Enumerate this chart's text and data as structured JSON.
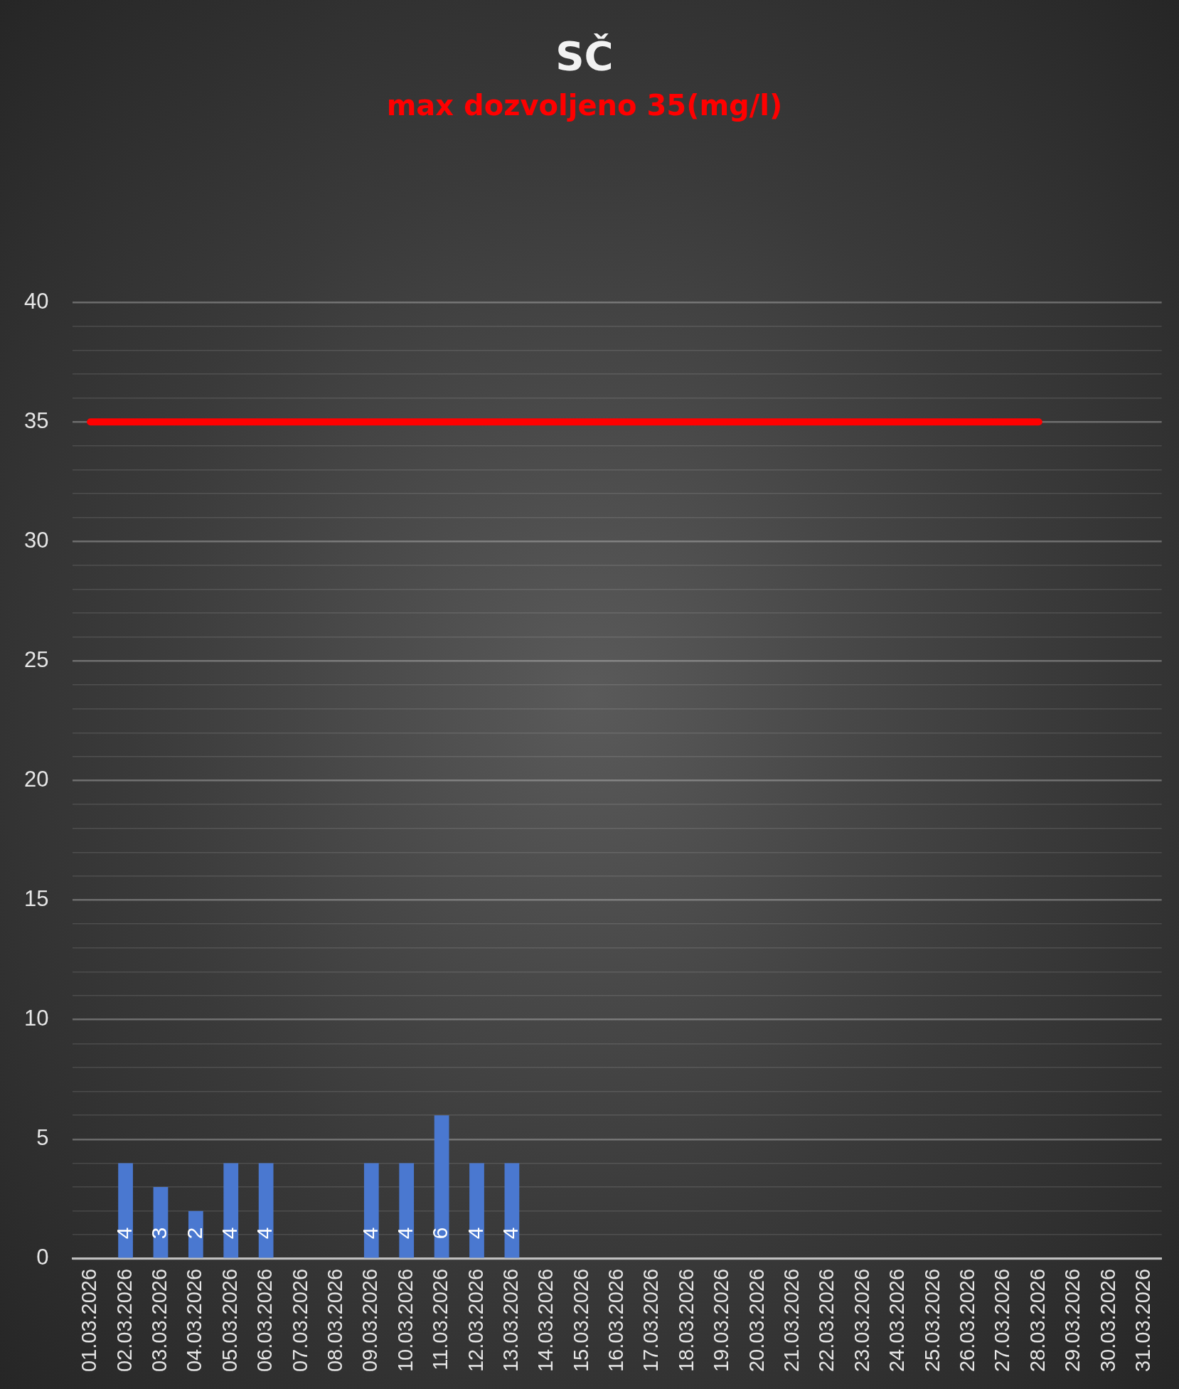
{
  "chart_data": {
    "type": "bar",
    "title": "SČ",
    "subtitle": "max dozvoljeno 35(mg/l)",
    "categories": [
      "01.03.2026",
      "02.03.2026",
      "03.03.2026",
      "04.03.2026",
      "05.03.2026",
      "06.03.2026",
      "07.03.2026",
      "08.03.2026",
      "09.03.2026",
      "10.03.2026",
      "11.03.2026",
      "12.03.2026",
      "13.03.2026",
      "14.03.2026",
      "15.03.2026",
      "16.03.2026",
      "17.03.2026",
      "18.03.2026",
      "19.03.2026",
      "20.03.2026",
      "21.03.2026",
      "22.03.2026",
      "23.03.2026",
      "24.03.2026",
      "25.03.2026",
      "26.03.2026",
      "27.03.2026",
      "28.03.2026",
      "29.03.2026",
      "30.03.2026",
      "31.03.2026"
    ],
    "series": [
      {
        "color": "#4a78d0",
        "values": [
          null,
          4,
          3,
          2,
          4,
          4,
          null,
          null,
          4,
          4,
          6,
          4,
          4,
          null,
          null,
          null,
          null,
          null,
          null,
          null,
          null,
          null,
          null,
          null,
          null,
          null,
          null,
          null,
          null,
          null,
          null
        ],
        "value_labels": [
          null,
          "4",
          "3",
          "2",
          "4",
          "4",
          null,
          null,
          "4",
          "4",
          "6",
          "4",
          "4",
          null,
          null,
          null,
          null,
          null,
          null,
          null,
          null,
          null,
          null,
          null,
          null,
          null,
          null,
          null,
          null,
          null,
          null
        ]
      },
      {
        "type": "line",
        "color": "#ff0000",
        "values": [
          35,
          35,
          35,
          35,
          35,
          35,
          35,
          35,
          35,
          35,
          35,
          35,
          35,
          35,
          35,
          35,
          35,
          35,
          35,
          35,
          35,
          35,
          35,
          35,
          35,
          35,
          35,
          35,
          null,
          null,
          null
        ]
      }
    ],
    "ylim": [
      0,
      40
    ],
    "yticks": [
      0,
      {
        "value": 1,
        "label": null
      },
      {
        "value": 2,
        "label": null
      },
      {
        "value": 3,
        "label": null
      },
      {
        "value": 4,
        "label": null
      },
      5,
      {
        "value": 6,
        "label": null
      },
      {
        "value": 7,
        "label": null
      },
      {
        "value": 8,
        "label": null
      },
      {
        "value": 9,
        "label": null
      },
      10,
      {
        "value": 11,
        "label": null
      },
      {
        "value": 12,
        "label": null
      },
      {
        "value": 13,
        "label": null
      },
      {
        "value": 14,
        "label": null
      },
      15,
      {
        "value": 16,
        "label": null
      },
      {
        "value": 17,
        "label": null
      },
      {
        "value": 18,
        "label": null
      },
      {
        "value": 19,
        "label": null
      },
      20,
      {
        "value": 21,
        "label": null
      },
      {
        "value": 22,
        "label": null
      },
      {
        "value": 23,
        "label": null
      },
      {
        "value": 24,
        "label": null
      },
      25,
      {
        "value": 26,
        "label": null
      },
      {
        "value": 27,
        "label": null
      },
      {
        "value": 28,
        "label": null
      },
      {
        "value": 29,
        "label": null
      },
      30,
      {
        "value": 31,
        "label": null
      },
      {
        "value": 32,
        "label": null
      },
      {
        "value": 33,
        "label": null
      },
      {
        "value": 34,
        "label": null
      },
      35,
      {
        "value": 36,
        "label": null
      },
      {
        "value": 37,
        "label": null
      },
      {
        "value": 38,
        "label": null
      },
      {
        "value": 39,
        "label": null
      },
      40
    ],
    "grid": "y"
  }
}
